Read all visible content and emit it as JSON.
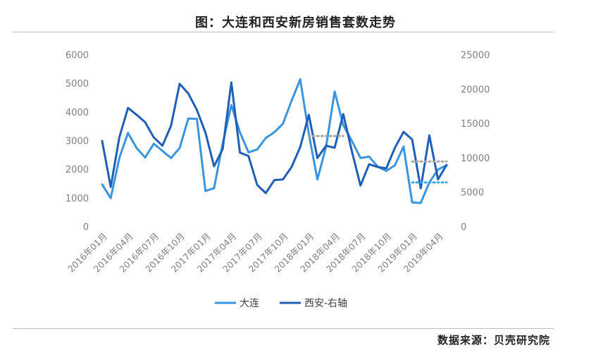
{
  "title": "图：大连和西安新房销售套数走势",
  "source": "数据来源：贝壳研究院",
  "chart_data": {
    "type": "line",
    "x": [
      "2016年01月",
      "2016年02月",
      "2016年03月",
      "2016年04月",
      "2016年05月",
      "2016年06月",
      "2016年07月",
      "2016年08月",
      "2016年09月",
      "2016年10月",
      "2016年11月",
      "2016年12月",
      "2017年01月",
      "2017年02月",
      "2017年03月",
      "2017年04月",
      "2017年05月",
      "2017年06月",
      "2017年07月",
      "2017年08月",
      "2017年09月",
      "2017年10月",
      "2017年11月",
      "2017年12月",
      "2018年01月",
      "2018年02月",
      "2018年03月",
      "2018年04月",
      "2018年05月",
      "2018年06月",
      "2018年07月",
      "2018年08月",
      "2018年09月",
      "2018年10月",
      "2018年11月",
      "2018年12月",
      "2019年01月",
      "2019年02月",
      "2019年03月",
      "2019年04月",
      "2019年05月"
    ],
    "x_tick_labels": [
      "2016年01月",
      "2016年04月",
      "2016年07月",
      "2016年10月",
      "2017年01月",
      "2017年04月",
      "2017年07月",
      "2017年10月",
      "2018年01月",
      "2018年04月",
      "2018年07月",
      "2018年10月",
      "2019年01月",
      "2019年04月"
    ],
    "series": [
      {
        "name": "大连",
        "axis": "left",
        "color": "#3a95e0",
        "values": [
          1480,
          1000,
          2400,
          3280,
          2750,
          2420,
          2900,
          2650,
          2400,
          2750,
          3780,
          3770,
          1250,
          1350,
          2900,
          4250,
          3300,
          2600,
          2700,
          3100,
          3300,
          3600,
          4400,
          5150,
          3250,
          1650,
          2800,
          4720,
          3550,
          3000,
          2400,
          2450,
          2100,
          1950,
          2150,
          2800,
          850,
          830,
          1550,
          2000,
          2150
        ]
      },
      {
        "name": "西安-右轴",
        "axis": "right",
        "color": "#1f5fb5",
        "values": [
          12500,
          5800,
          13000,
          17300,
          16300,
          15200,
          13000,
          11800,
          14700,
          20800,
          19400,
          17000,
          13700,
          8800,
          11300,
          21000,
          10800,
          10300,
          6100,
          4900,
          6800,
          6900,
          8700,
          11600,
          16300,
          10000,
          11800,
          11500,
          16400,
          11000,
          6000,
          9100,
          8700,
          8500,
          11500,
          13800,
          12700,
          5600,
          13300,
          6900,
          9000
        ]
      }
    ],
    "reference_lines": [
      {
        "series": "大连",
        "value": 1550,
        "from": "2019年01月",
        "to": "2019年05月",
        "color": "#3aa7ea"
      },
      {
        "series": "西安-右轴",
        "value": 13200,
        "from": "2018年01月",
        "to": "2018年05月",
        "color": "#a6a6a6"
      },
      {
        "series": "西安-右轴",
        "value": 9500,
        "from": "2019年01月",
        "to": "2019年05月",
        "color": "#a6a6a6"
      }
    ],
    "y_left": {
      "ylim": [
        0,
        6000
      ],
      "ticks": [
        "0",
        "1000",
        "2000",
        "3000",
        "4000",
        "5000",
        "6000"
      ]
    },
    "y_right": {
      "ylim": [
        0,
        25000
      ],
      "ticks": [
        "0",
        "5000",
        "10000",
        "15000",
        "20000",
        "25000"
      ]
    },
    "grid": false,
    "legend_position": "bottom"
  }
}
